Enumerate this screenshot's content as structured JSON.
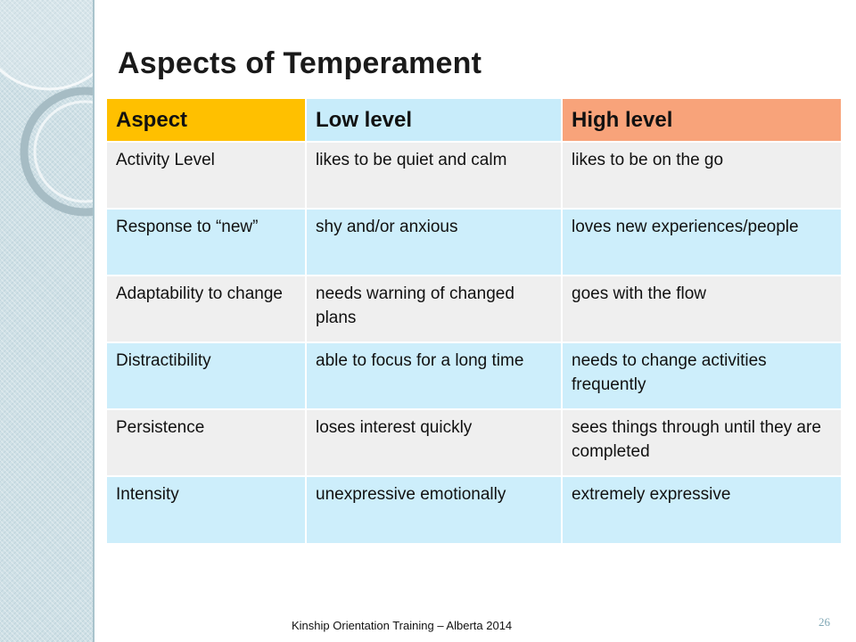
{
  "slide": {
    "title": "Aspects of Temperament",
    "footer": "Kinship Orientation Training – Alberta 2014",
    "page_number": "26"
  },
  "colors": {
    "header_aspect": "#ffc000",
    "header_low": "#c8ecfa",
    "header_high": "#f8a37a",
    "row_odd": "#efefef",
    "row_even": "#cdeefb",
    "sidebar": "#cfe0e6"
  },
  "table": {
    "headers": [
      "Aspect",
      "Low level",
      "High level"
    ],
    "rows": [
      [
        "Activity Level",
        "likes to be quiet and calm",
        "likes to be on the go"
      ],
      [
        "Response to “new”",
        "shy and/or anxious",
        "loves new experiences/people"
      ],
      [
        "Adaptability to change",
        "needs warning of changed plans",
        "goes with the flow"
      ],
      [
        "Distractibility",
        "able to focus for a long time",
        "needs to change activities frequently"
      ],
      [
        "Persistence",
        "loses interest quickly",
        "sees things through until they are completed"
      ],
      [
        "Intensity",
        "unexpressive emotionally",
        "extremely expressive"
      ]
    ]
  }
}
